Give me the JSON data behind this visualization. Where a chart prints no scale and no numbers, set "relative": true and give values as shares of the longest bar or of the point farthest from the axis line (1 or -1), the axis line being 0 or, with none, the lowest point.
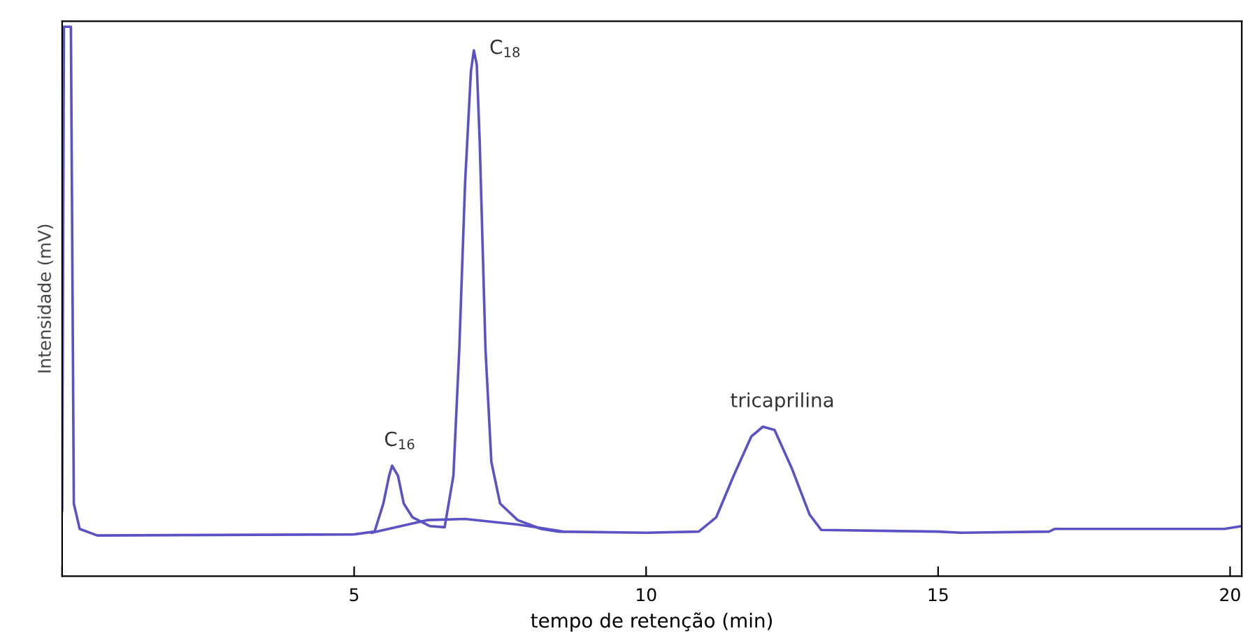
{
  "chart_data": {
    "type": "line",
    "relative": true,
    "xlabel": "tempo de retenção (min)",
    "ylabel": "Intensidade (mV)",
    "xlim": [
      0,
      20.2
    ],
    "xticks": [
      {
        "value": 0,
        "label": null
      },
      5,
      10,
      15,
      20
    ],
    "marker": "none",
    "line_style": "solid",
    "series": [
      {
        "color": "#5b52c6",
        "x": [
          0,
          0.03,
          0.15,
          0.2,
          0.3,
          0.6,
          5.0,
          5.35,
          5.5,
          5.6,
          5.65,
          5.75,
          5.85,
          6.0,
          6.3,
          6.55,
          6.7,
          6.8,
          6.9,
          7.0,
          7.05,
          7.1,
          7.15,
          7.25,
          7.35,
          7.5,
          7.8,
          8.2,
          8.5,
          10,
          10.9,
          11.2,
          11.5,
          11.8,
          12.0,
          12.2,
          12.5,
          12.8,
          13.0,
          15.0,
          15.4,
          16.9,
          17.0,
          19.9,
          20.2
        ],
        "values": [
          0.119,
          1.0,
          1.0,
          0.132,
          0.086,
          0.074,
          0.076,
          0.081,
          0.132,
          0.183,
          0.201,
          0.183,
          0.132,
          0.107,
          0.091,
          0.089,
          0.183,
          0.411,
          0.716,
          0.919,
          0.957,
          0.931,
          0.792,
          0.411,
          0.208,
          0.132,
          0.102,
          0.086,
          0.081,
          0.079,
          0.081,
          0.107,
          0.183,
          0.254,
          0.272,
          0.266,
          0.195,
          0.112,
          0.084,
          0.081,
          0.079,
          0.081,
          0.086,
          0.086,
          0.091
        ]
      },
      {
        "color": "#5b52c6",
        "x": [
          5.3,
          5.8,
          6.25,
          6.9,
          7.8,
          8.3,
          8.6
        ],
        "values": [
          0.079,
          0.091,
          0.102,
          0.104,
          0.094,
          0.086,
          0.081
        ]
      }
    ],
    "annotations": [
      {
        "text": "C$_{16}$",
        "x": 5.65,
        "y": 0.201
      },
      {
        "text": "C$_{18}$",
        "x": 7.05,
        "y": 0.957
      },
      {
        "text": "tricaprilina",
        "x": 12.2,
        "y": 0.272
      }
    ]
  }
}
